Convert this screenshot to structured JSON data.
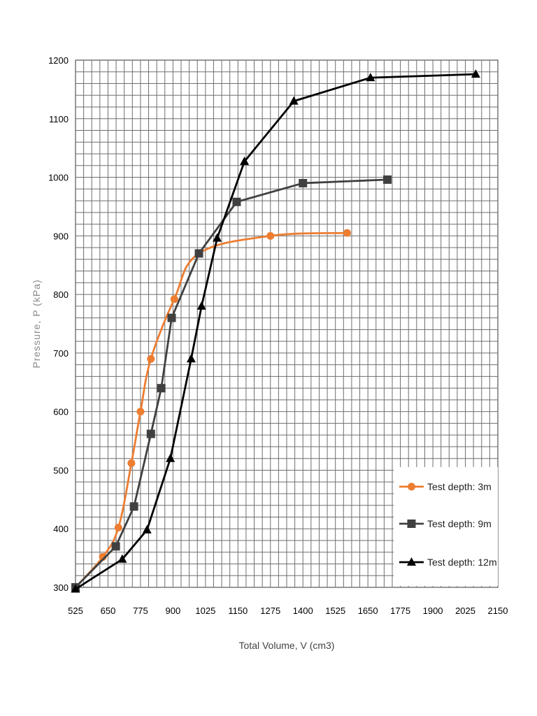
{
  "chart_data": {
    "type": "line",
    "title": "",
    "xlabel": "Total Volume, V (cm3)",
    "ylabel": "Pressure, P (kPa)",
    "xlim": [
      525,
      2150
    ],
    "ylim": [
      300,
      1200
    ],
    "x_ticks": [
      "525",
      "650",
      "775",
      "900",
      "1025",
      "1150",
      "1275",
      "1400",
      "1525",
      "1650",
      "1775",
      "1900",
      "2025",
      "2150"
    ],
    "y_ticks": [
      "300",
      "400",
      "500",
      "600",
      "700",
      "800",
      "900",
      "1000",
      "1100",
      "1200"
    ],
    "grid": true,
    "legend_position": "bottom-right",
    "series": [
      {
        "name": "Test depth: 3m",
        "color": "#ed7d31",
        "marker": "circle",
        "smooth": true,
        "points": [
          [
            525,
            300
          ],
          [
            630,
            352
          ],
          [
            690,
            402
          ],
          [
            740,
            512
          ],
          [
            775,
            600
          ],
          [
            815,
            690
          ],
          [
            905,
            792
          ],
          [
            1000,
            870
          ],
          [
            1275,
            900
          ],
          [
            1570,
            905
          ]
        ]
      },
      {
        "name": "Test depth: 9m",
        "color": "#404040",
        "marker": "square",
        "smooth": false,
        "points": [
          [
            525,
            300
          ],
          [
            680,
            370
          ],
          [
            750,
            438
          ],
          [
            815,
            562
          ],
          [
            855,
            640
          ],
          [
            895,
            760
          ],
          [
            1000,
            870
          ],
          [
            1145,
            958
          ],
          [
            1400,
            990
          ],
          [
            1725,
            996
          ]
        ]
      },
      {
        "name": "Test depth: 12m",
        "color": "#000000",
        "marker": "triangle",
        "smooth": false,
        "points": [
          [
            525,
            297
          ],
          [
            705,
            348
          ],
          [
            800,
            398
          ],
          [
            890,
            520
          ],
          [
            970,
            690
          ],
          [
            1010,
            780
          ],
          [
            1070,
            896
          ],
          [
            1175,
            1027
          ],
          [
            1365,
            1130
          ],
          [
            1660,
            1170
          ],
          [
            2065,
            1176
          ]
        ]
      }
    ]
  }
}
